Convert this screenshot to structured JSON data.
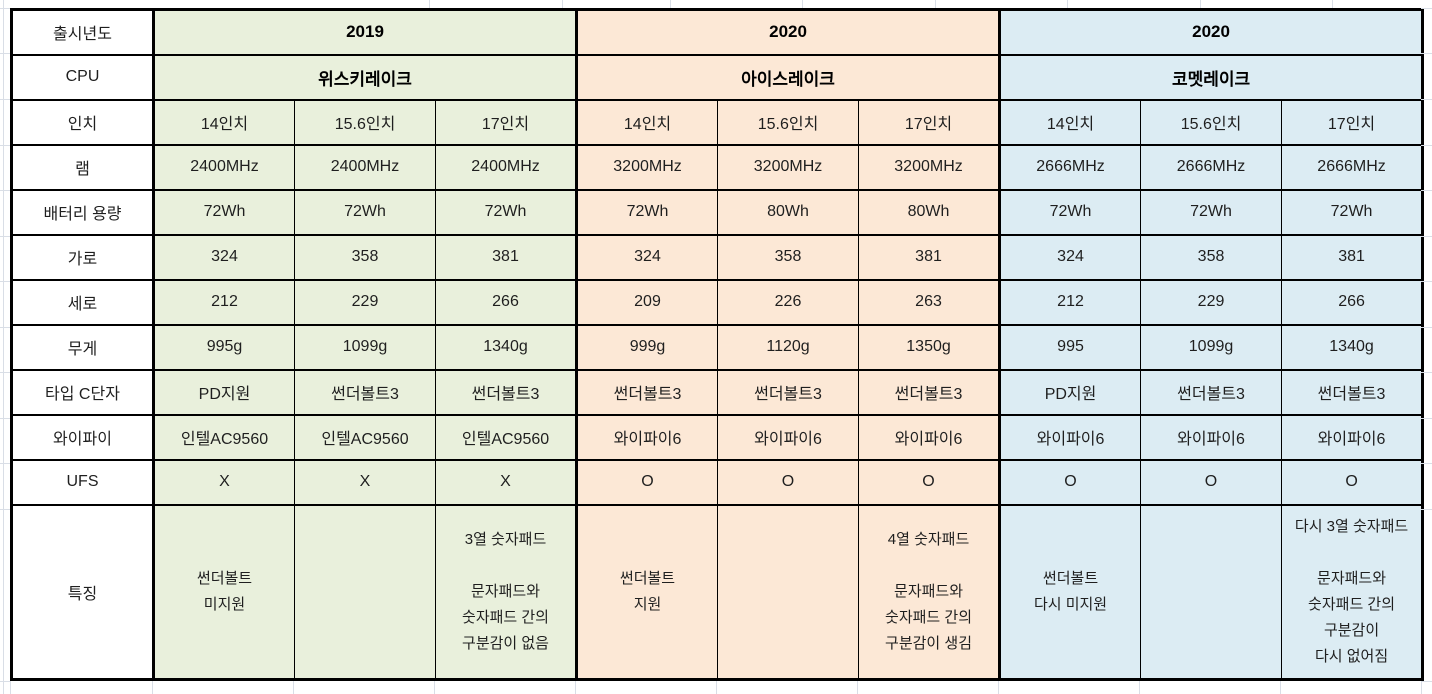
{
  "table": {
    "row_labels": [
      "출시년도",
      "CPU",
      "인치",
      "램",
      "배터리 용량",
      "가로",
      "세로",
      "무게",
      "타입 C단자",
      "와이파이",
      "UFS",
      "특징"
    ],
    "sections": [
      {
        "year": "2019",
        "cpu": "위스키레이크",
        "color": "#e9f0dc",
        "columns": [
          {
            "inch": "14인치",
            "ram": "2400MHz",
            "battery": "72Wh",
            "width_mm": "324",
            "depth_mm": "212",
            "weight": "995g",
            "type_c": "PD지원",
            "wifi": "인텔AC9560",
            "ufs": "X",
            "feature": "썬더볼트\n미지원"
          },
          {
            "inch": "15.6인치",
            "ram": "2400MHz",
            "battery": "72Wh",
            "width_mm": "358",
            "depth_mm": "229",
            "weight": "1099g",
            "type_c": "썬더볼트3",
            "wifi": "인텔AC9560",
            "ufs": "X",
            "feature": ""
          },
          {
            "inch": "17인치",
            "ram": "2400MHz",
            "battery": "72Wh",
            "width_mm": "381",
            "depth_mm": "266",
            "weight": "1340g",
            "type_c": "썬더볼트3",
            "wifi": "인텔AC9560",
            "ufs": "X",
            "feature": "3열 숫자패드\n\n문자패드와\n숫자패드 간의\n구분감이 없음"
          }
        ]
      },
      {
        "year": "2020",
        "cpu": "아이스레이크",
        "color": "#fce8d6",
        "columns": [
          {
            "inch": "14인치",
            "ram": "3200MHz",
            "battery": "72Wh",
            "width_mm": "324",
            "depth_mm": "209",
            "weight": "999g",
            "type_c": "썬더볼트3",
            "wifi": "와이파이6",
            "ufs": "O",
            "feature": "썬더볼트\n지원"
          },
          {
            "inch": "15.6인치",
            "ram": "3200MHz",
            "battery": "80Wh",
            "width_mm": "358",
            "depth_mm": "226",
            "weight": "1120g",
            "type_c": "썬더볼트3",
            "wifi": "와이파이6",
            "ufs": "O",
            "feature": ""
          },
          {
            "inch": "17인치",
            "ram": "3200MHz",
            "battery": "80Wh",
            "width_mm": "381",
            "depth_mm": "263",
            "weight": "1350g",
            "type_c": "썬더볼트3",
            "wifi": "와이파이6",
            "ufs": "O",
            "feature": "4열 숫자패드\n\n문자패드와\n숫자패드 간의\n구분감이 생김"
          }
        ]
      },
      {
        "year": "2020",
        "cpu": "코멧레이크",
        "color": "#dcecf3",
        "columns": [
          {
            "inch": "14인치",
            "ram": "2666MHz",
            "battery": "72Wh",
            "width_mm": "324",
            "depth_mm": "212",
            "weight": "995",
            "type_c": "PD지원",
            "wifi": "와이파이6",
            "ufs": "O",
            "feature": "썬더볼트\n다시 미지원"
          },
          {
            "inch": "15.6인치",
            "ram": "2666MHz",
            "battery": "72Wh",
            "width_mm": "358",
            "depth_mm": "229",
            "weight": "1099g",
            "type_c": "썬더볼트3",
            "wifi": "와이파이6",
            "ufs": "O",
            "feature": ""
          },
          {
            "inch": "17인치",
            "ram": "2666MHz",
            "battery": "72Wh",
            "width_mm": "381",
            "depth_mm": "266",
            "weight": "1340g",
            "type_c": "썬더볼트3",
            "wifi": "와이파이6",
            "ufs": "O",
            "feature": "다시 3열 숫자패드\n\n문자패드와\n숫자패드 간의\n구분감이\n다시 없어짐"
          }
        ]
      }
    ]
  }
}
